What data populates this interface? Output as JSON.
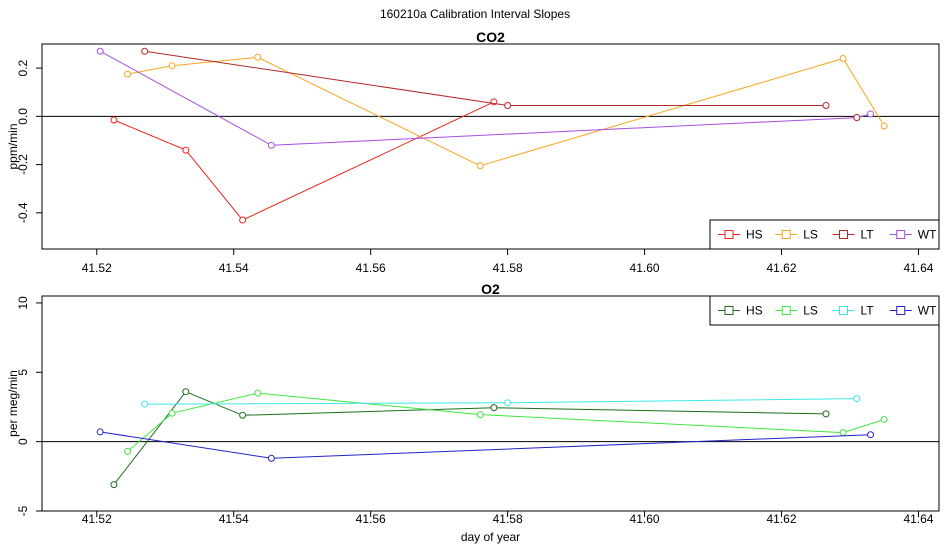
{
  "figure_title": "160210a   Calibration Interval Slopes",
  "chart_data": [
    {
      "type": "line",
      "title": "CO2",
      "xlabel": "",
      "ylabel": "ppm/min",
      "xlim": [
        41.512,
        41.643
      ],
      "ylim": [
        -0.55,
        0.3
      ],
      "xticks": [
        41.52,
        41.54,
        41.56,
        41.58,
        41.6,
        41.62,
        41.64
      ],
      "xtick_labels": [
        "41.52",
        "41.54",
        "41.56",
        "41.58",
        "41.60",
        "41.62",
        "41.64"
      ],
      "yticks": [
        -0.4,
        -0.2,
        0.0,
        0.2
      ],
      "ytick_labels": [
        "-0.4",
        "-0.2",
        "0.0",
        "0.2"
      ],
      "hline": 0,
      "legend_position": "bottom-right",
      "series": [
        {
          "name": "HS",
          "color": "#e8281e",
          "x": [
            41.5225,
            41.533,
            41.5413,
            41.578
          ],
          "y": [
            -0.015,
            -0.14,
            -0.43,
            0.06
          ]
        },
        {
          "name": "LS",
          "color": "#f5a623",
          "x": [
            41.5245,
            41.531,
            41.5435,
            41.576,
            41.629,
            41.635
          ],
          "y": [
            0.175,
            0.21,
            0.245,
            -0.205,
            0.24,
            -0.04
          ]
        },
        {
          "name": "LT",
          "color": "#b22a2a",
          "x": [
            41.527,
            41.58,
            41.6265
          ],
          "y": [
            0.27,
            0.045,
            0.045
          ]
        },
        {
          "name": "WT",
          "color": "#a64fe0",
          "x": [
            41.5205,
            41.5455,
            41.631,
            41.633
          ],
          "y": [
            0.27,
            -0.12,
            -0.005,
            0.01
          ]
        }
      ],
      "extra_points": [
        {
          "series": "LT",
          "x": 41.631,
          "y": -0.005
        }
      ]
    },
    {
      "type": "line",
      "title": "O2",
      "xlabel": "day of year",
      "ylabel": "per meg/min",
      "xlim": [
        41.512,
        41.643
      ],
      "ylim": [
        -5,
        10.5
      ],
      "xticks": [
        41.52,
        41.54,
        41.56,
        41.58,
        41.6,
        41.62,
        41.64
      ],
      "xtick_labels": [
        "41.52",
        "41.54",
        "41.56",
        "41.58",
        "41.60",
        "41.62",
        "41.64"
      ],
      "yticks": [
        -5,
        0,
        5,
        10
      ],
      "ytick_labels": [
        "-5",
        "0",
        "5",
        "10"
      ],
      "hline": 0,
      "legend_position": "top-right",
      "series": [
        {
          "name": "HS",
          "color": "#1e6b1e",
          "x": [
            41.5225,
            41.533,
            41.5413,
            41.578,
            41.6265
          ],
          "y": [
            -3.1,
            3.6,
            1.9,
            2.45,
            2.0
          ]
        },
        {
          "name": "LS",
          "color": "#3ee83e",
          "x": [
            41.5245,
            41.531,
            41.5435,
            41.576,
            41.629,
            41.635
          ],
          "y": [
            -0.7,
            2.05,
            3.5,
            1.95,
            0.65,
            1.6
          ]
        },
        {
          "name": "LT",
          "color": "#3ee8e8",
          "x": [
            41.527,
            41.58,
            41.631
          ],
          "y": [
            2.7,
            2.8,
            3.1
          ]
        },
        {
          "name": "WT",
          "color": "#2323c8",
          "x": [
            41.5205,
            41.5455,
            41.633
          ],
          "y": [
            0.7,
            -1.2,
            0.5
          ]
        }
      ]
    }
  ]
}
